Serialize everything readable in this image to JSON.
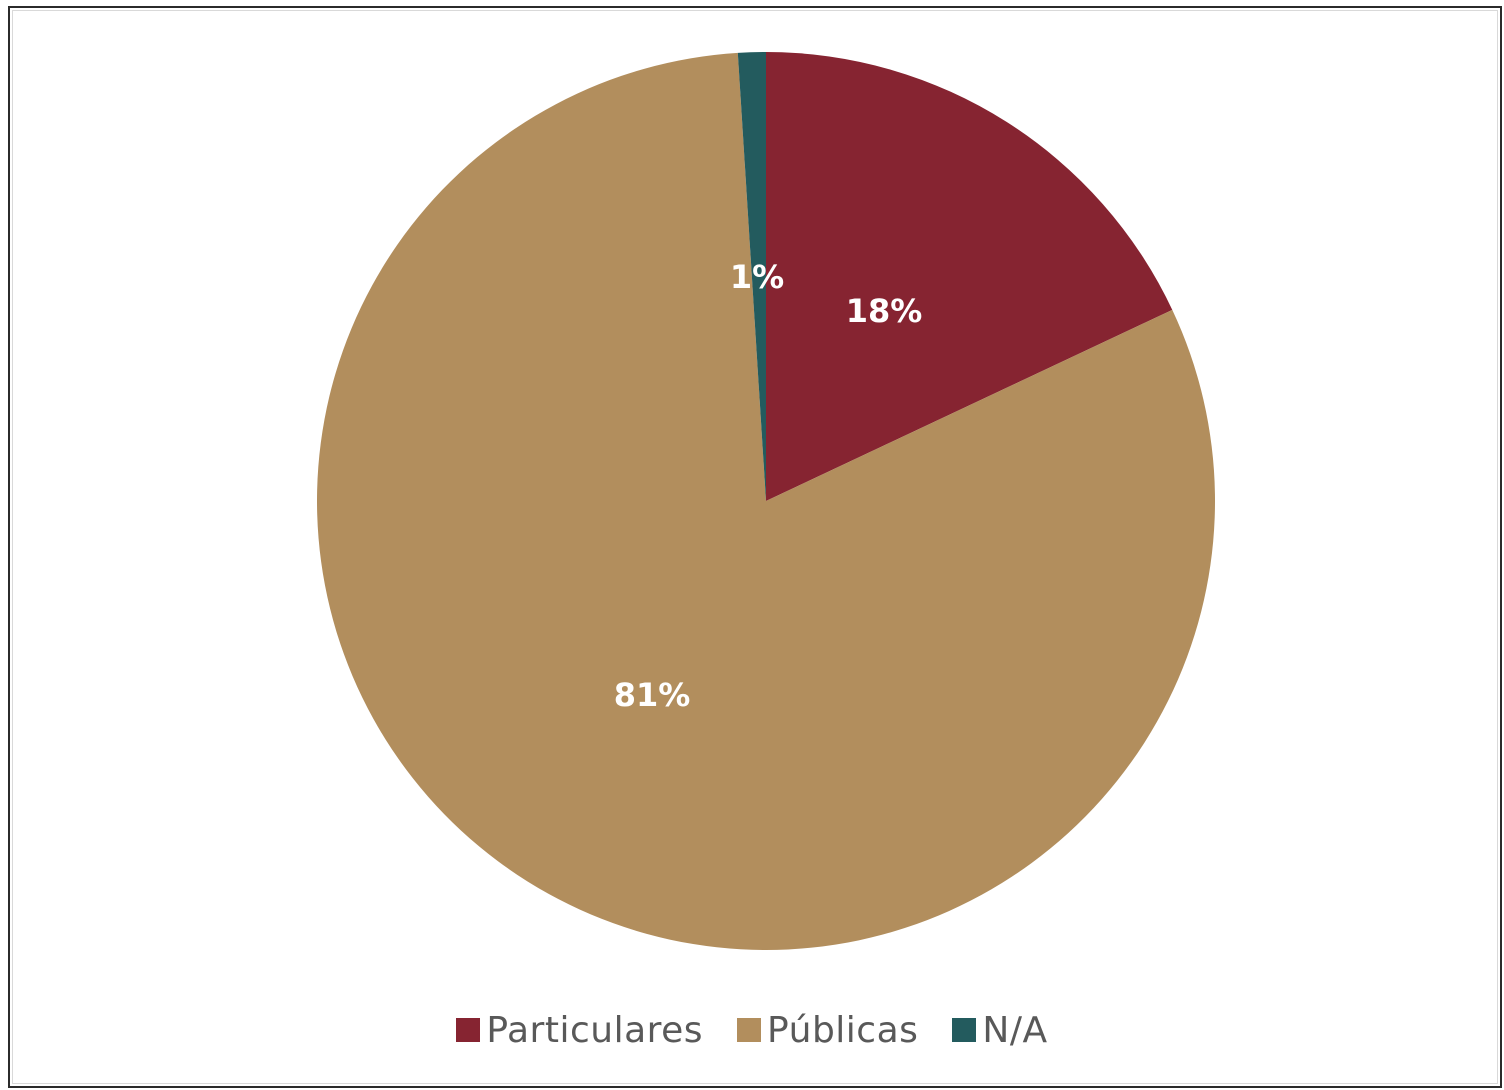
{
  "chart_data": {
    "type": "pie",
    "title": "",
    "start_angle_deg": 0,
    "direction": "clockwise",
    "legend_position": "bottom",
    "slices": [
      {
        "name": "Particulares",
        "value": 18,
        "label": "18%",
        "color": "#862431"
      },
      {
        "name": "Públicas",
        "value": 81,
        "label": "81%",
        "color": "#b28e5d"
      },
      {
        "name": "N/A",
        "value": 1,
        "label": "1%",
        "color": "#235b5e"
      }
    ]
  }
}
